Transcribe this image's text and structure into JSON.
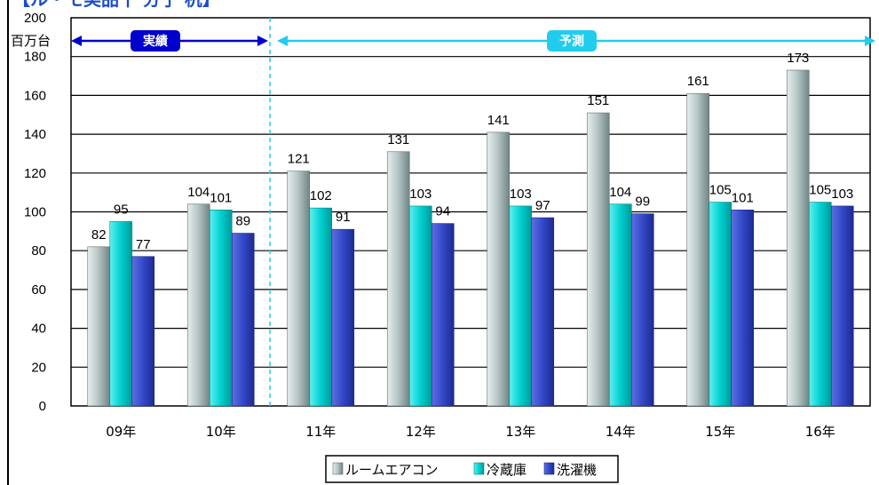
{
  "title_fragment": "【ル・モ美品十 分子 杭】",
  "annotations": {
    "actual_label": "実績",
    "forecast_label": "予測",
    "actual_color": "#0000cc",
    "forecast_color": "#22ccee"
  },
  "colors": {
    "series_1": "#8fa3a3",
    "series_2": "#00c8c8",
    "series_3": "#2a3fbf"
  },
  "chart_data": {
    "type": "bar",
    "ylabel": "百万台",
    "ylim": [
      0,
      200
    ],
    "yticks": [
      0,
      20,
      40,
      60,
      80,
      100,
      120,
      140,
      160,
      180,
      200
    ],
    "categories": [
      "09年",
      "10年",
      "11年",
      "12年",
      "13年",
      "14年",
      "15年",
      "16年"
    ],
    "series": [
      {
        "name": "ルームエアコン",
        "values": [
          82,
          104,
          121,
          131,
          141,
          151,
          161,
          173
        ]
      },
      {
        "name": "冷蔵庫",
        "values": [
          95,
          101,
          102,
          103,
          103,
          104,
          105,
          105
        ]
      },
      {
        "name": "洗濯機",
        "values": [
          77,
          89,
          91,
          94,
          97,
          99,
          101,
          103
        ]
      }
    ],
    "grid": true,
    "legend_position": "bottom"
  }
}
